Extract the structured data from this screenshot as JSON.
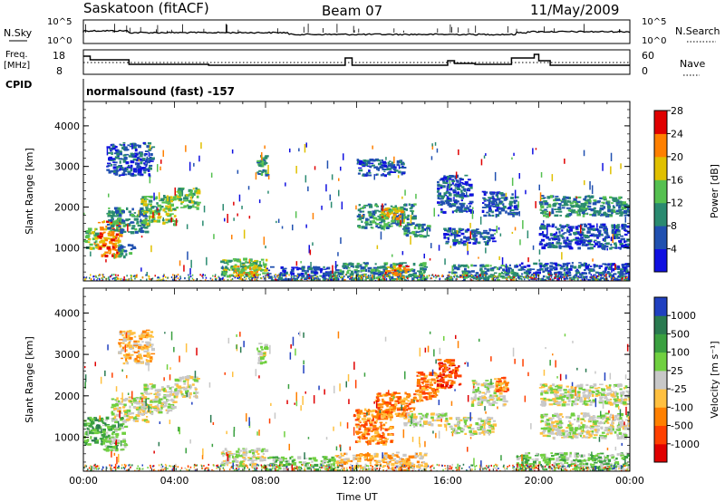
{
  "header": {
    "station": "Saskatoon (fitACF)",
    "beam": "Beam 07",
    "date": "11/May/2009"
  },
  "strip_labels": {
    "nsky": "N.Sky",
    "nsky_ticks": [
      "10^5",
      "10^0"
    ],
    "nsearch": "N.Search",
    "nsearch_ticks": [
      "10^5",
      "10^0"
    ],
    "freq_line1": "Freq.",
    "freq_line2": "[MHz]",
    "freq_ticks": [
      "18",
      "8"
    ],
    "nave": "Nave",
    "nave_ticks": [
      "60",
      "0"
    ],
    "cpid": "CPID",
    "cpid_value": "normalsound (fast) -157"
  },
  "chart_data": [
    {
      "type": "heatmap",
      "name": "power",
      "ylabel": "Slant Range [km]",
      "ylim": [
        180,
        4600
      ],
      "yticks": [
        "1000",
        "2000",
        "3000",
        "4000"
      ],
      "colorbar_label": "Power [dB]",
      "colorbar_ticks": [
        "4",
        "8",
        "12",
        "16",
        "20",
        "24",
        "28"
      ],
      "colors": [
        "#1010e0",
        "#2050b0",
        "#2a8a70",
        "#55c050",
        "#e0c000",
        "#ff8000",
        "#e00000"
      ],
      "features": [
        {
          "t0": 0.0,
          "t1": 0.6,
          "r0": 1000,
          "r1": 1500,
          "level": 3
        },
        {
          "t0": 0.6,
          "t1": 1.6,
          "r0": 800,
          "r1": 1700,
          "level": 5
        },
        {
          "t0": 1.5,
          "t1": 2.2,
          "r0": 800,
          "r1": 1100,
          "level": 2
        },
        {
          "t0": 1.0,
          "t1": 2.8,
          "r0": 1400,
          "r1": 2000,
          "level": 2
        },
        {
          "t0": 2.5,
          "t1": 4.0,
          "r0": 1600,
          "r1": 2300,
          "level": 3
        },
        {
          "t0": 4.0,
          "t1": 5.0,
          "r0": 2000,
          "r1": 2500,
          "level": 3
        },
        {
          "t0": 1.0,
          "t1": 3.0,
          "r0": 2800,
          "r1": 3600,
          "level": 1
        },
        {
          "t0": 7.6,
          "t1": 8.0,
          "r0": 2800,
          "r1": 3300,
          "level": 2
        },
        {
          "t0": 6.0,
          "t1": 8.0,
          "r0": 300,
          "r1": 750,
          "level": 3
        },
        {
          "t0": 6.6,
          "t1": 7.6,
          "r0": 400,
          "r1": 600,
          "level": 4
        },
        {
          "t0": 8.0,
          "t1": 11.0,
          "r0": 220,
          "r1": 550,
          "level": 1
        },
        {
          "t0": 11.0,
          "t1": 15.0,
          "r0": 220,
          "r1": 650,
          "level": 2
        },
        {
          "t0": 13.2,
          "t1": 14.2,
          "r0": 350,
          "r1": 600,
          "level": 5
        },
        {
          "t0": 12.0,
          "t1": 14.5,
          "r0": 1500,
          "r1": 2100,
          "level": 2
        },
        {
          "t0": 13.0,
          "t1": 14.0,
          "r0": 1700,
          "r1": 2000,
          "level": 4
        },
        {
          "t0": 14.0,
          "t1": 15.2,
          "r0": 1300,
          "r1": 1600,
          "level": 2
        },
        {
          "t0": 12.0,
          "t1": 14.0,
          "r0": 2800,
          "r1": 3200,
          "level": 1
        },
        {
          "t0": 15.5,
          "t1": 17.0,
          "r0": 1900,
          "r1": 2800,
          "level": 1
        },
        {
          "t0": 15.8,
          "t1": 18.0,
          "r0": 1100,
          "r1": 1500,
          "level": 1
        },
        {
          "t0": 17.5,
          "t1": 19.0,
          "r0": 1800,
          "r1": 2400,
          "level": 1
        },
        {
          "t0": 16.0,
          "t1": 19.0,
          "r0": 220,
          "r1": 600,
          "level": 2
        },
        {
          "t0": 20.0,
          "t1": 24.0,
          "r0": 1800,
          "r1": 2300,
          "level": 2
        },
        {
          "t0": 20.0,
          "t1": 24.0,
          "r0": 1000,
          "r1": 1600,
          "level": 1
        },
        {
          "t0": 19.0,
          "t1": 24.0,
          "r0": 220,
          "r1": 650,
          "level": 1
        }
      ]
    },
    {
      "type": "heatmap",
      "name": "velocity",
      "ylabel": "Slant Range [km]",
      "ylim": [
        180,
        4600
      ],
      "yticks": [
        "1000",
        "2000",
        "3000",
        "4000"
      ],
      "xlabel": "Time UT",
      "xticks": [
        "00:00",
        "04:00",
        "08:00",
        "12:00",
        "16:00",
        "20:00",
        "00:00"
      ],
      "xlim": [
        0,
        24
      ],
      "colorbar_label": "Velocity [m s⁻¹]",
      "colorbar_ticks": [
        "1000",
        "500",
        "100",
        "25",
        "-25",
        "-100",
        "-500",
        "-1000"
      ],
      "colors": [
        "#2040c0",
        "#2a7a50",
        "#3aa040",
        "#70d040",
        "#c8c8c8",
        "#ffc040",
        "#ff8000",
        "#ff4000",
        "#e00000"
      ],
      "features": [
        {
          "t0": 0.0,
          "t1": 1.0,
          "r0": 850,
          "r1": 1500,
          "level": 2
        },
        {
          "t0": 0.8,
          "t1": 1.8,
          "r0": 700,
          "r1": 1500,
          "level": 3
        },
        {
          "t0": 1.2,
          "t1": 2.8,
          "r0": 1400,
          "r1": 2000,
          "level": 4
        },
        {
          "t0": 2.5,
          "t1": 4.0,
          "r0": 1600,
          "r1": 2300,
          "level": 4
        },
        {
          "t0": 4.0,
          "t1": 5.0,
          "r0": 2000,
          "r1": 2500,
          "level": 4
        },
        {
          "t0": 1.5,
          "t1": 3.0,
          "r0": 2800,
          "r1": 3600,
          "level": 5
        },
        {
          "t0": 7.6,
          "t1": 8.0,
          "r0": 2800,
          "r1": 3300,
          "level": 4
        },
        {
          "t0": 6.0,
          "t1": 8.0,
          "r0": 300,
          "r1": 750,
          "level": 4
        },
        {
          "t0": 8.0,
          "t1": 11.0,
          "r0": 220,
          "r1": 550,
          "level": 3
        },
        {
          "t0": 11.0,
          "t1": 15.0,
          "r0": 220,
          "r1": 650,
          "level": 5
        },
        {
          "t0": 11.8,
          "t1": 13.5,
          "r0": 850,
          "r1": 1700,
          "level": 6
        },
        {
          "t0": 12.8,
          "t1": 14.5,
          "r0": 1500,
          "r1": 2100,
          "level": 6
        },
        {
          "t0": 14.5,
          "t1": 15.5,
          "r0": 1900,
          "r1": 2600,
          "level": 6
        },
        {
          "t0": 15.5,
          "t1": 16.5,
          "r0": 2200,
          "r1": 2900,
          "level": 7
        },
        {
          "t0": 14.0,
          "t1": 16.0,
          "r0": 1300,
          "r1": 1600,
          "level": 4
        },
        {
          "t0": 16.0,
          "t1": 18.0,
          "r0": 1100,
          "r1": 1500,
          "level": 4
        },
        {
          "t0": 17.0,
          "t1": 18.5,
          "r0": 1800,
          "r1": 2400,
          "level": 4
        },
        {
          "t0": 18.0,
          "t1": 18.6,
          "r0": 2100,
          "r1": 2500,
          "level": 6
        },
        {
          "t0": 20.0,
          "t1": 24.0,
          "r0": 1800,
          "r1": 2300,
          "level": 4
        },
        {
          "t0": 20.0,
          "t1": 24.0,
          "r0": 1000,
          "r1": 1600,
          "level": 4
        },
        {
          "t0": 19.0,
          "t1": 24.0,
          "r0": 220,
          "r1": 650,
          "level": 3
        }
      ]
    }
  ]
}
